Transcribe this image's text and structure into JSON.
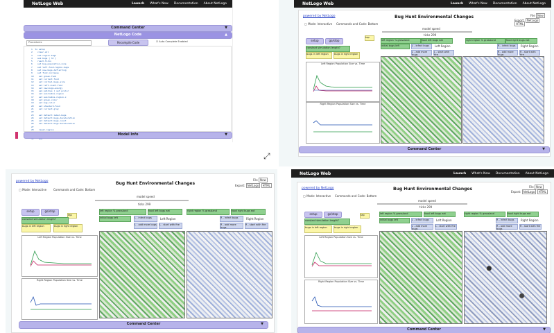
{
  "nav": {
    "brand": "NetLogo Web",
    "links": [
      "Launch",
      "What's New",
      "Documentation",
      "About NetLogo"
    ]
  },
  "panel1": {
    "command_center": "Command Center",
    "netlogo_code": "NetLogo Code",
    "procedures": "Procedures",
    "recompile": "Recompile Code",
    "autocomplete": "Auto Complete Enabled",
    "model_info": "Model Info",
    "code_lines": [
      "to setup",
      "  clear-all",
      "  set-region-bugs",
      "  ask bugs [ ht ]",
      "  reset-ticks",
      "  set bug-population-size",
      "  set left-food-region-bugs",
      "  set new-bugs-deflecting",
      "  set food-increase",
      "  set green-food",
      "  set current-food",
      "  set initial-bugs-size",
      "  set left-count-food",
      "  set new-bugs-energy",
      "  ask patches [ set pcolor",
      "  set available-region",
      "  set available-region-x",
      "  set green-color",
      "  set bug-color",
      "  set standard-food",
      "  set current-gray",
      "",
      "  set default-label-bugs",
      "  set default-bugs-deceleration",
      "  set default-bugs-count",
      "  set default-bugs-decelaration",
      "",
      "  reset-region",
      "  add-starting-grass",
      "  add-bugs",
      "  end"
    ]
  },
  "model": {
    "powered_by": "powered by NetLogo",
    "title": "Bug Hunt Environmental Changes",
    "mode_interactive": "Mode: Interactive",
    "commands_code": "Commands and Code: Bottom",
    "file": "File",
    "new": "New",
    "export": "Export:",
    "export_netlogo": "NetLogo",
    "export_html": "HTML",
    "model_speed": "model speed",
    "ticks": "ticks 299",
    "setup": "setup",
    "go": "go/stop",
    "tap": "tap",
    "constant_simulation": "constant simulation length?",
    "bugs_left": "bugs in left region",
    "bugs_right": "bugs in right region",
    "left_grass": "left region % grassland",
    "right_grass": "right region % grassland",
    "food_left": "food left bugs eat",
    "food_right": "food right bugs eat",
    "init_bugs_left": "initial bugs left",
    "init_bugs_right": "initial bugs right",
    "left_region": "Left Region",
    "right_region": "Right Region",
    "add_left": "L - infect bugs",
    "add_right": "R - infect bugs",
    "more_left": "L - add more bugs",
    "more_right": "R - add more bugs",
    "start_left": "L - start with fire",
    "start_right": "R - start with fire",
    "plot_left": "Left Region Population Size vs. Time",
    "plot_right": "Right Region Population Size vs. Time",
    "legend": [
      "bugs",
      "grass",
      "damage"
    ],
    "command_center": "Command Center"
  },
  "colors": {
    "nav": "#1e1e1e",
    "bar": "#b7b3ea",
    "green": "#8fd08f",
    "yellow": "#fbf6a8",
    "link": "#2a43c7"
  },
  "icons": {
    "resize": "resize-arrow-icon"
  }
}
